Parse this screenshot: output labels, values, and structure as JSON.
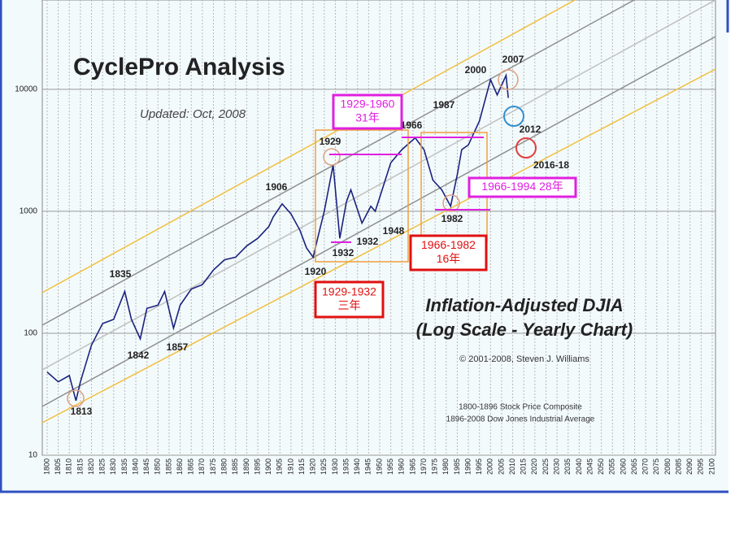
{
  "chart_data": {
    "type": "line",
    "title": "CyclePro Analysis",
    "subtitle": "Updated: Oct, 2008",
    "chart_heading": [
      "Inflation-Adjusted DJIA",
      "(Log Scale - Yearly Chart)"
    ],
    "copyright": "© 2001-2008, Steven J. Williams",
    "sources": [
      "1800-1896 Stock Price Composite",
      "1896-2008 Dow Jones Industrial Average"
    ],
    "log_scale": true,
    "grid": true,
    "x": [
      1800,
      1805,
      1810,
      1813,
      1815,
      1820,
      1825,
      1830,
      1835,
      1838,
      1842,
      1845,
      1850,
      1853,
      1857,
      1860,
      1865,
      1870,
      1875,
      1880,
      1885,
      1890,
      1895,
      1900,
      1902,
      1906,
      1910,
      1914,
      1917,
      1920,
      1922,
      1925,
      1929,
      1932,
      1935,
      1937,
      1942,
      1946,
      1948,
      1950,
      1955,
      1960,
      1966,
      1970,
      1974,
      1978,
      1982,
      1985,
      1987,
      1990,
      1995,
      2000,
      2003,
      2007,
      2008
    ],
    "series": [
      {
        "name": "DJIA",
        "color": "#1a237e",
        "values": [
          48,
          40,
          45,
          28,
          40,
          80,
          120,
          130,
          220,
          130,
          90,
          160,
          170,
          220,
          110,
          170,
          230,
          250,
          330,
          400,
          420,
          520,
          600,
          750,
          900,
          1150,
          950,
          700,
          500,
          420,
          600,
          1000,
          2400,
          600,
          1200,
          1500,
          800,
          1100,
          1000,
          1300,
          2500,
          3200,
          4000,
          3200,
          1800,
          1500,
          1100,
          2000,
          3200,
          3500,
          5500,
          12000,
          9000,
          13000,
          8500
        ]
      }
    ],
    "xlim": [
      1800,
      2100
    ],
    "xticks": [
      1800,
      1805,
      1810,
      1815,
      1820,
      1825,
      1830,
      1835,
      1840,
      1845,
      1850,
      1855,
      1860,
      1865,
      1870,
      1875,
      1880,
      1885,
      1890,
      1895,
      1900,
      1905,
      1910,
      1915,
      1920,
      1925,
      1930,
      1935,
      1940,
      1945,
      1950,
      1955,
      1960,
      1965,
      1970,
      1975,
      1980,
      1985,
      1990,
      1995,
      2000,
      2005,
      2010,
      2015,
      2020,
      2025,
      2030,
      2035,
      2040,
      2045,
      2050,
      2055,
      2060,
      2065,
      2070,
      2075,
      2080,
      2085,
      2090,
      2095,
      2100
    ],
    "ylim": [
      10,
      50000
    ],
    "yticks": [
      10,
      100,
      1000,
      10000
    ],
    "year_labels": [
      "1813",
      "1835",
      "1842",
      "1857",
      "1906",
      "1920",
      "1929",
      "1932",
      "1932",
      "1948",
      "1966",
      "1987",
      "1982",
      "2000",
      "2007",
      "2012",
      "2016-18"
    ],
    "boxes": [
      {
        "lines": [
          "1929-1960",
          "31年"
        ],
        "color": "#e020e0"
      },
      {
        "lines": [
          "1966-1994 28年"
        ],
        "color": "#e020e0"
      },
      {
        "lines": [
          "1966-1982",
          "16年"
        ],
        "color": "#e01010"
      },
      {
        "lines": [
          "1929-1932",
          "三年"
        ],
        "color": "#e01010"
      }
    ]
  }
}
